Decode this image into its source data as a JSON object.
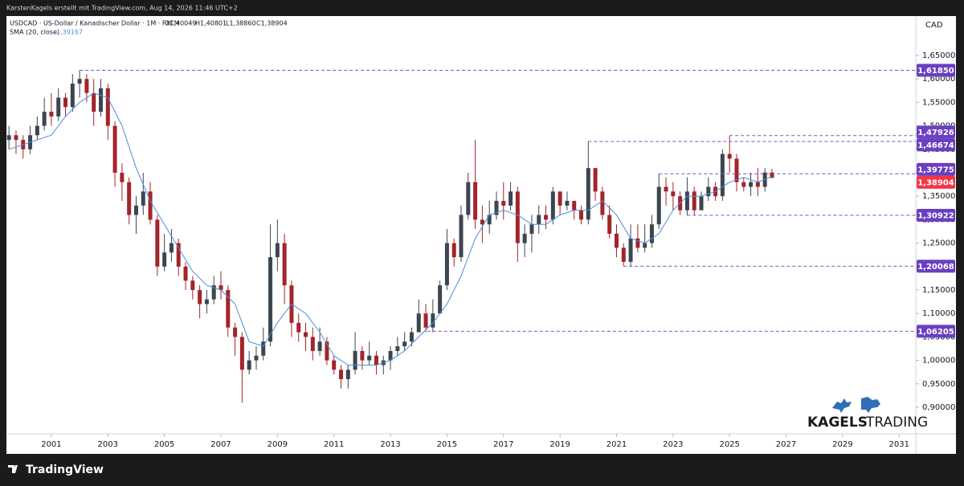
{
  "chart_data": {
    "type": "candlestick",
    "title": "KarstenKagels erstellt mit TradingView.com, Aug 14, 2026 11:46 UTC+2",
    "symbol": "USDCAD · US-Dollar / Kanadischer Dollar · 1M · FXCM",
    "ohlc_labels": [
      "O1,40049",
      "H1,40801",
      "L1,38860",
      "C1,38904"
    ],
    "currency": "CAD",
    "up_color": "#3c4650",
    "down_color": "#a3242b",
    "x": [
      1999.5,
      1999.75,
      2000,
      2000.25,
      2000.5,
      2000.75,
      2001,
      2001.25,
      2001.5,
      2001.75,
      2002,
      2002.25,
      2002.5,
      2002.75,
      2003,
      2003.25,
      2003.5,
      2003.75,
      2004,
      2004.25,
      2004.5,
      2004.75,
      2005,
      2005.25,
      2005.5,
      2005.75,
      2006,
      2006.25,
      2006.5,
      2006.75,
      2007,
      2007.25,
      2007.5,
      2007.75,
      2008,
      2008.25,
      2008.5,
      2008.75,
      2009,
      2009.25,
      2009.5,
      2009.75,
      2010,
      2010.25,
      2010.5,
      2010.75,
      2011,
      2011.25,
      2011.5,
      2011.75,
      2012,
      2012.25,
      2012.5,
      2012.75,
      2013,
      2013.25,
      2013.5,
      2013.75,
      2014,
      2014.25,
      2014.5,
      2014.75,
      2015,
      2015.25,
      2015.5,
      2015.75,
      2016,
      2016.25,
      2016.5,
      2016.75,
      2017,
      2017.25,
      2017.5,
      2017.75,
      2018,
      2018.25,
      2018.5,
      2018.75,
      2019,
      2019.25,
      2019.5,
      2019.75,
      2020,
      2020.25,
      2020.5,
      2020.75,
      2021,
      2021.25,
      2021.5,
      2021.75,
      2022,
      2022.25,
      2022.5,
      2022.75,
      2023,
      2023.25,
      2023.5,
      2023.75,
      2024,
      2024.25,
      2024.5,
      2024.75,
      2025,
      2025.25,
      2025.5,
      2025.75,
      2026,
      2026.25,
      2026.5
    ],
    "open": [
      1.47,
      1.48,
      1.47,
      1.45,
      1.48,
      1.5,
      1.53,
      1.52,
      1.56,
      1.54,
      1.59,
      1.6,
      1.57,
      1.53,
      1.58,
      1.5,
      1.4,
      1.38,
      1.31,
      1.33,
      1.36,
      1.3,
      1.2,
      1.23,
      1.25,
      1.2,
      1.17,
      1.15,
      1.12,
      1.13,
      1.16,
      1.15,
      1.07,
      1.05,
      0.98,
      1.0,
      1.01,
      1.04,
      1.22,
      1.25,
      1.16,
      1.08,
      1.06,
      1.05,
      1.02,
      1.04,
      1.0,
      0.98,
      0.96,
      0.98,
      1.02,
      1.0,
      1.01,
      0.99,
      1.0,
      1.02,
      1.03,
      1.04,
      1.06,
      1.1,
      1.07,
      1.1,
      1.16,
      1.25,
      1.22,
      1.31,
      1.38,
      1.3,
      1.29,
      1.31,
      1.34,
      1.33,
      1.36,
      1.25,
      1.27,
      1.29,
      1.31,
      1.3,
      1.36,
      1.33,
      1.34,
      1.32,
      1.3,
      1.41,
      1.36,
      1.31,
      1.27,
      1.24,
      1.21,
      1.26,
      1.24,
      1.25,
      1.29,
      1.37,
      1.36,
      1.35,
      1.32,
      1.36,
      1.32,
      1.35,
      1.37,
      1.35,
      1.44,
      1.43,
      1.38,
      1.37,
      1.38,
      1.37,
      1.40049
    ],
    "high": [
      1.5,
      1.49,
      1.48,
      1.5,
      1.52,
      1.56,
      1.57,
      1.58,
      1.57,
      1.61,
      1.6185,
      1.61,
      1.6,
      1.6,
      1.59,
      1.51,
      1.42,
      1.39,
      1.35,
      1.4,
      1.38,
      1.31,
      1.27,
      1.28,
      1.26,
      1.21,
      1.18,
      1.16,
      1.15,
      1.18,
      1.19,
      1.16,
      1.08,
      1.06,
      1.02,
      1.03,
      1.07,
      1.29,
      1.3,
      1.27,
      1.17,
      1.1,
      1.08,
      1.07,
      1.07,
      1.05,
      1.01,
      0.99,
      0.99,
      1.06,
      1.03,
      1.04,
      1.02,
      1.01,
      1.03,
      1.05,
      1.06,
      1.07,
      1.13,
      1.12,
      1.13,
      1.17,
      1.28,
      1.26,
      1.33,
      1.4,
      1.47,
      1.33,
      1.34,
      1.36,
      1.38,
      1.38,
      1.37,
      1.29,
      1.31,
      1.33,
      1.33,
      1.37,
      1.36,
      1.36,
      1.34,
      1.33,
      1.46674,
      1.41,
      1.37,
      1.33,
      1.29,
      1.25,
      1.29,
      1.29,
      1.29,
      1.31,
      1.39775,
      1.39,
      1.38,
      1.36,
      1.39,
      1.37,
      1.36,
      1.39,
      1.38,
      1.45,
      1.47926,
      1.44,
      1.39,
      1.4,
      1.41,
      1.41,
      1.40801
    ],
    "low": [
      1.45,
      1.44,
      1.43,
      1.44,
      1.47,
      1.49,
      1.5,
      1.51,
      1.52,
      1.53,
      1.56,
      1.55,
      1.5,
      1.52,
      1.47,
      1.37,
      1.34,
      1.29,
      1.27,
      1.31,
      1.29,
      1.18,
      1.19,
      1.21,
      1.18,
      1.15,
      1.13,
      1.09,
      1.1,
      1.12,
      1.13,
      1.05,
      1.01,
      0.91,
      0.97,
      0.98,
      1.0,
      1.03,
      1.19,
      1.12,
      1.05,
      1.04,
      1.02,
      1.0,
      1.01,
      0.99,
      0.97,
      0.94,
      0.94,
      0.97,
      0.98,
      0.99,
      0.97,
      0.97,
      0.98,
      1.01,
      1.02,
      1.03,
      1.06,
      1.06,
      1.06,
      1.1,
      1.15,
      1.2,
      1.21,
      1.3,
      1.28,
      1.25,
      1.27,
      1.3,
      1.3,
      1.32,
      1.21,
      1.22,
      1.23,
      1.27,
      1.28,
      1.29,
      1.31,
      1.32,
      1.3,
      1.29,
      1.29,
      1.34,
      1.3,
      1.26,
      1.22,
      1.20068,
      1.2,
      1.23,
      1.23,
      1.24,
      1.28,
      1.33,
      1.32,
      1.31,
      1.30922,
      1.31,
      1.32,
      1.34,
      1.34,
      1.34,
      1.4,
      1.36,
      1.36,
      1.35,
      1.35,
      1.36,
      1.3886
    ],
    "close": [
      1.48,
      1.47,
      1.45,
      1.48,
      1.5,
      1.53,
      1.52,
      1.56,
      1.54,
      1.59,
      1.6,
      1.57,
      1.53,
      1.58,
      1.5,
      1.4,
      1.38,
      1.31,
      1.33,
      1.36,
      1.3,
      1.2,
      1.23,
      1.25,
      1.2,
      1.17,
      1.15,
      1.12,
      1.13,
      1.16,
      1.15,
      1.07,
      1.05,
      0.98,
      1.0,
      1.01,
      1.04,
      1.22,
      1.25,
      1.16,
      1.08,
      1.06,
      1.05,
      1.02,
      1.04,
      1.0,
      0.98,
      0.96,
      0.98,
      1.02,
      1.0,
      1.01,
      0.99,
      1.0,
      1.02,
      1.03,
      1.04,
      1.06,
      1.1,
      1.07,
      1.1,
      1.16,
      1.25,
      1.22,
      1.31,
      1.38,
      1.3,
      1.29,
      1.31,
      1.34,
      1.33,
      1.36,
      1.25,
      1.27,
      1.29,
      1.31,
      1.3,
      1.36,
      1.33,
      1.34,
      1.32,
      1.3,
      1.41,
      1.36,
      1.31,
      1.27,
      1.24,
      1.21,
      1.26,
      1.24,
      1.25,
      1.29,
      1.37,
      1.36,
      1.35,
      1.32,
      1.36,
      1.32,
      1.35,
      1.37,
      1.35,
      1.44,
      1.43,
      1.38,
      1.37,
      1.38,
      1.37,
      1.40049,
      1.38904
    ],
    "sma": {
      "name": "SMA (20, close)",
      "color": "#4a8fe0",
      "value_label": "1,39167",
      "x": [
        1999.5,
        2000,
        2000.5,
        2001,
        2001.5,
        2002,
        2002.5,
        2003,
        2003.5,
        2004,
        2004.5,
        2005,
        2005.5,
        2006,
        2006.5,
        2007,
        2007.5,
        2008,
        2008.5,
        2009,
        2009.5,
        2010,
        2010.5,
        2011,
        2011.5,
        2012,
        2012.5,
        2013,
        2013.5,
        2014,
        2014.5,
        2015,
        2015.5,
        2016,
        2016.5,
        2017,
        2017.5,
        2018,
        2018.5,
        2019,
        2019.5,
        2020,
        2020.5,
        2021,
        2021.5,
        2022,
        2022.5,
        2023,
        2023.5,
        2024,
        2024.5,
        2025,
        2025.5,
        2026,
        2026.5
      ],
      "values": [
        1.45,
        1.46,
        1.47,
        1.48,
        1.52,
        1.55,
        1.57,
        1.56,
        1.5,
        1.41,
        1.34,
        1.29,
        1.24,
        1.19,
        1.16,
        1.15,
        1.12,
        1.04,
        1.03,
        1.08,
        1.12,
        1.1,
        1.06,
        1.01,
        0.99,
        0.99,
        0.99,
        1.0,
        1.02,
        1.05,
        1.08,
        1.12,
        1.18,
        1.26,
        1.31,
        1.32,
        1.31,
        1.29,
        1.29,
        1.31,
        1.32,
        1.32,
        1.34,
        1.31,
        1.26,
        1.25,
        1.27,
        1.32,
        1.35,
        1.35,
        1.36,
        1.38,
        1.39,
        1.38,
        1.39167
      ]
    },
    "levels": [
      {
        "value": 1.6185,
        "label": "1,61850",
        "start": 2002,
        "color": "#6a3fc1"
      },
      {
        "value": 1.47926,
        "label": "1,47926",
        "start": 2025,
        "color": "#6a3fc1"
      },
      {
        "value": 1.46674,
        "label": "1,46674",
        "start": 2020,
        "color": "#6a3fc1"
      },
      {
        "value": 1.39775,
        "label": "1,39775",
        "start": 2022.5,
        "color": "#6a3fc1"
      },
      {
        "value": 1.38904,
        "label": "1,38904",
        "color": "#f23645"
      },
      {
        "value": 1.30922,
        "label": "1,30922",
        "start": 2023.5,
        "color": "#6a3fc1"
      },
      {
        "value": 1.20068,
        "label": "1,20068",
        "start": 2021.25,
        "color": "#6a3fc1"
      },
      {
        "value": 1.06205,
        "label": "1,06205",
        "start": 2014.3,
        "color": "#6a3fc1"
      }
    ],
    "xlim": [
      1999.41,
      2031.59
    ],
    "xticks": [
      2001,
      2003,
      2005,
      2007,
      2009,
      2011,
      2013,
      2015,
      2017,
      2019,
      2021,
      2023,
      2025,
      2027,
      2029,
      2031
    ],
    "ylim": [
      0.8435,
      1.734
    ],
    "yticks": [
      {
        "value": 0.9,
        "label": "0,90000"
      },
      {
        "value": 0.95,
        "label": "0,95000"
      },
      {
        "value": 1.0,
        "label": "1,00000"
      },
      {
        "value": 1.05,
        "label": "1,05000"
      },
      {
        "value": 1.1,
        "label": "1,10000"
      },
      {
        "value": 1.15,
        "label": "1,15000"
      },
      {
        "value": 1.2,
        "label": "1,20000"
      },
      {
        "value": 1.25,
        "label": "1,25000"
      },
      {
        "value": 1.3,
        "label": "1,30000"
      },
      {
        "value": 1.35,
        "label": "1,35000"
      },
      {
        "value": 1.4,
        "label": "1,40000"
      },
      {
        "value": 1.45,
        "label": "1,45000"
      },
      {
        "value": 1.5,
        "label": "1,50000"
      },
      {
        "value": 1.55,
        "label": "1,55000"
      },
      {
        "value": 1.6,
        "label": "1,60000"
      },
      {
        "value": 1.65,
        "label": "1,65000"
      }
    ],
    "watermark": [
      "KAGELS",
      "TRADING"
    ],
    "footer": "TradingView"
  }
}
